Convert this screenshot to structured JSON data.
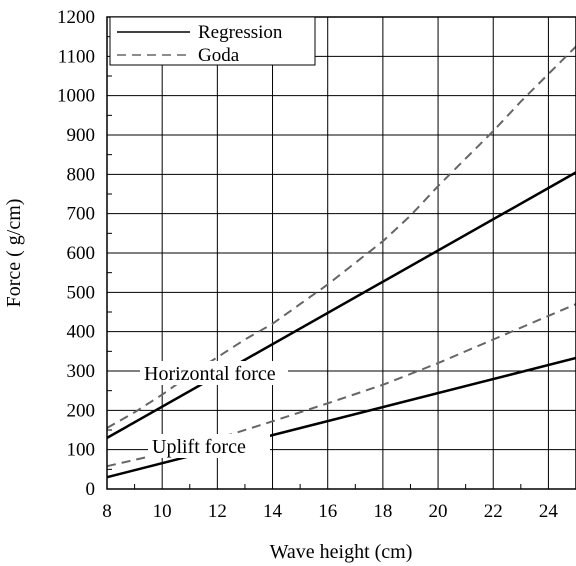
{
  "chart_data": {
    "type": "line",
    "title": "",
    "xlabel": "Wave height (cm)",
    "ylabel": "Force ( g/cm)",
    "xlim": [
      8,
      25
    ],
    "ylim": [
      0,
      1200
    ],
    "x_ticks": [
      8,
      10,
      12,
      14,
      16,
      18,
      20,
      22,
      24
    ],
    "y_ticks": [
      0,
      100,
      200,
      300,
      400,
      500,
      600,
      700,
      800,
      900,
      1000,
      1100,
      1200
    ],
    "grid": true,
    "legend_position": "top-left",
    "legend": [
      {
        "label": "Regression",
        "style": "solid"
      },
      {
        "label": "Goda",
        "style": "dashed"
      }
    ],
    "annotations": [
      {
        "text": "Horizontal force",
        "x": 14.6,
        "y": 300
      },
      {
        "text": "Uplift force",
        "x": 12.1,
        "y": 105
      }
    ],
    "series": [
      {
        "group": "Horizontal force",
        "method": "Regression",
        "style": "solid",
        "color": "#000000",
        "x": [
          8,
          25
        ],
        "y": [
          130,
          805
        ]
      },
      {
        "group": "Horizontal force",
        "method": "Goda",
        "style": "dashed",
        "color": "#666666",
        "x": [
          8,
          9,
          10,
          11,
          12,
          13,
          14,
          15,
          16,
          17,
          18,
          19,
          20,
          21,
          22,
          23,
          24,
          25
        ],
        "y": [
          155,
          195,
          240,
          290,
          335,
          380,
          420,
          470,
          520,
          575,
          630,
          695,
          770,
          840,
          910,
          985,
          1055,
          1125
        ]
      },
      {
        "group": "Uplift force",
        "method": "Regression",
        "style": "solid",
        "color": "#000000",
        "x": [
          8,
          25
        ],
        "y": [
          30,
          333
        ]
      },
      {
        "group": "Uplift force",
        "method": "Goda",
        "style": "dashed",
        "color": "#666666",
        "x": [
          8,
          10,
          12,
          14,
          16,
          18,
          20,
          22,
          24,
          25
        ],
        "y": [
          58,
          90,
          128,
          172,
          218,
          265,
          320,
          380,
          440,
          470
        ]
      }
    ]
  }
}
